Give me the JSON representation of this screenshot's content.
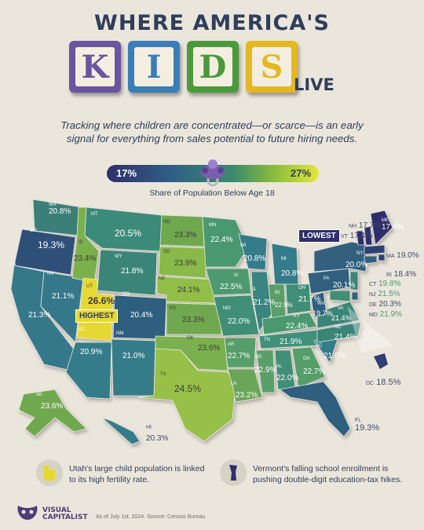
{
  "header": {
    "title_line1": "WHERE AMERICA'S",
    "blocks": [
      {
        "letter": "K",
        "color": "#6a55a0",
        "letter_color": "#6a55a0"
      },
      {
        "letter": "I",
        "color": "#3a7db7",
        "letter_color": "#3a7db7"
      },
      {
        "letter": "D",
        "color": "#4a9a3b",
        "letter_color": "#4a9a3b"
      },
      {
        "letter": "S",
        "color": "#e3b823",
        "letter_color": "#e3b823"
      }
    ],
    "title_end": "LIVE",
    "subtitle": "Tracking where children are concentrated—or scarce—is an early signal for everything from sales potential to future hiring needs."
  },
  "legend": {
    "min_label": "17%",
    "max_label": "27%",
    "caption": "Share of Population Below Age 18",
    "icon": "pacifier-icon"
  },
  "map": {
    "highest_label": "HIGHEST",
    "lowest_label": "LOWEST",
    "states": [
      {
        "abbr": "WA",
        "value": "20.8%"
      },
      {
        "abbr": "OR",
        "value": "19.3%"
      },
      {
        "abbr": "CA",
        "value": "21.3%"
      },
      {
        "abbr": "NV",
        "value": "21.1%"
      },
      {
        "abbr": "ID",
        "value": "23.4%"
      },
      {
        "abbr": "MT",
        "value": "20.5%"
      },
      {
        "abbr": "WY",
        "value": "21.8%"
      },
      {
        "abbr": "UT",
        "value": "26.6%"
      },
      {
        "abbr": "CO",
        "value": "20.4%"
      },
      {
        "abbr": "AZ",
        "value": "20.9%"
      },
      {
        "abbr": "NM",
        "value": "21.0%"
      },
      {
        "abbr": "ND",
        "value": "23.3%"
      },
      {
        "abbr": "SD",
        "value": "23.9%"
      },
      {
        "abbr": "NE",
        "value": "24.1%"
      },
      {
        "abbr": "KS",
        "value": "23.3%"
      },
      {
        "abbr": "OK",
        "value": "23.6%"
      },
      {
        "abbr": "TX",
        "value": "24.5%"
      },
      {
        "abbr": "MN",
        "value": "22.4%"
      },
      {
        "abbr": "IA",
        "value": "22.5%"
      },
      {
        "abbr": "MO",
        "value": "22.0%"
      },
      {
        "abbr": "AR",
        "value": "22.7%"
      },
      {
        "abbr": "LA",
        "value": "23.2%"
      },
      {
        "abbr": "WI",
        "value": "20.8%"
      },
      {
        "abbr": "IL",
        "value": "21.2%"
      },
      {
        "abbr": "MS",
        "value": "22.9%"
      },
      {
        "abbr": "MI",
        "value": "20.8%"
      },
      {
        "abbr": "IN",
        "value": "22.9%"
      },
      {
        "abbr": "KY",
        "value": "22.4%"
      },
      {
        "abbr": "TN",
        "value": "21.9%"
      },
      {
        "abbr": "AL",
        "value": "22.0%"
      },
      {
        "abbr": "GA",
        "value": "22.7%"
      },
      {
        "abbr": "FL",
        "value": "19.3%"
      },
      {
        "abbr": "OH",
        "value": "21.7%"
      },
      {
        "abbr": "WV",
        "value": "19.7%"
      },
      {
        "abbr": "VA",
        "value": "21.4%"
      },
      {
        "abbr": "NC",
        "value": "21.4%"
      },
      {
        "abbr": "SC",
        "value": "21.0%"
      },
      {
        "abbr": "PA",
        "value": "20.1%"
      },
      {
        "abbr": "NY",
        "value": "20.0%"
      },
      {
        "abbr": "VT",
        "value": "17.4%"
      },
      {
        "abbr": "NH",
        "value": "17.7%"
      },
      {
        "abbr": "ME",
        "value": "17.6%"
      },
      {
        "abbr": "MA",
        "value": "19.0%"
      },
      {
        "abbr": "RI",
        "value": "18.4%"
      },
      {
        "abbr": "CT",
        "value": "19.8%"
      },
      {
        "abbr": "NJ",
        "value": "21.5%"
      },
      {
        "abbr": "DE",
        "value": "20.3%"
      },
      {
        "abbr": "MD",
        "value": "21.9%"
      },
      {
        "abbr": "DC",
        "value": "18.5%"
      },
      {
        "abbr": "AK",
        "value": "23.6%"
      },
      {
        "abbr": "HI",
        "value": "20.3%"
      }
    ]
  },
  "notes": {
    "utah": "Utah's large child population is linked to its high fertility rate.",
    "vermont": "Vermont's falling school enrollment is pushing double-digit education-tax hikes."
  },
  "footer": {
    "logo_line1": "VISUAL",
    "logo_line2": "CAPITALIST",
    "source": "As of July 1st, 2024. Source: Census Bureau"
  }
}
